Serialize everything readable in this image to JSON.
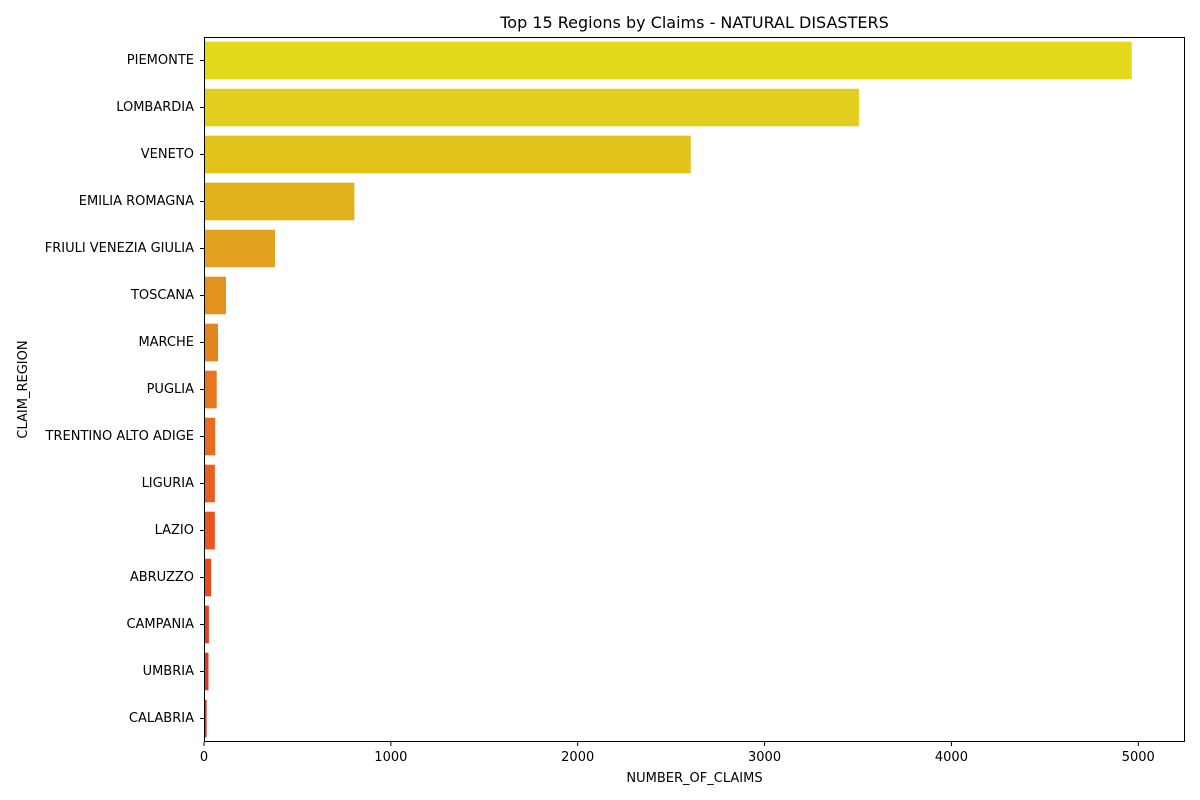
{
  "chart_data": {
    "type": "bar",
    "orientation": "horizontal",
    "title": "Top 15 Regions by Claims - NATURAL DISASTERS",
    "xlabel": "NUMBER_OF_CLAIMS",
    "ylabel": "CLAIM_REGION",
    "xlim": [
      0,
      5250
    ],
    "xticks": [
      0,
      1000,
      2000,
      3000,
      4000,
      5000
    ],
    "grid": false,
    "legend": "none",
    "categories": [
      "PIEMONTE",
      "LOMBARDIA",
      "VENETO",
      "EMILIA ROMAGNA",
      "FRIULI VENEZIA GIULIA",
      "TOSCANA",
      "MARCHE",
      "PUGLIA",
      "TRENTINO ALTO ADIGE",
      "LIGURIA",
      "LAZIO",
      "ABRUZZO",
      "CAMPANIA",
      "UMBRIA",
      "CALABRIA"
    ],
    "values": [
      4965,
      3505,
      2605,
      805,
      380,
      118,
      75,
      68,
      60,
      58,
      58,
      38,
      26,
      24,
      14
    ],
    "colors": [
      "#E3D81B",
      "#E2CE1C",
      "#E2C31C",
      "#E2B21D",
      "#E2A11E",
      "#E2921E",
      "#E3841E",
      "#E5781F",
      "#E66D1F",
      "#E8601F",
      "#E9541F",
      "#E74A1F",
      "#E5411F",
      "#E03A1F",
      "#D5341F"
    ]
  }
}
